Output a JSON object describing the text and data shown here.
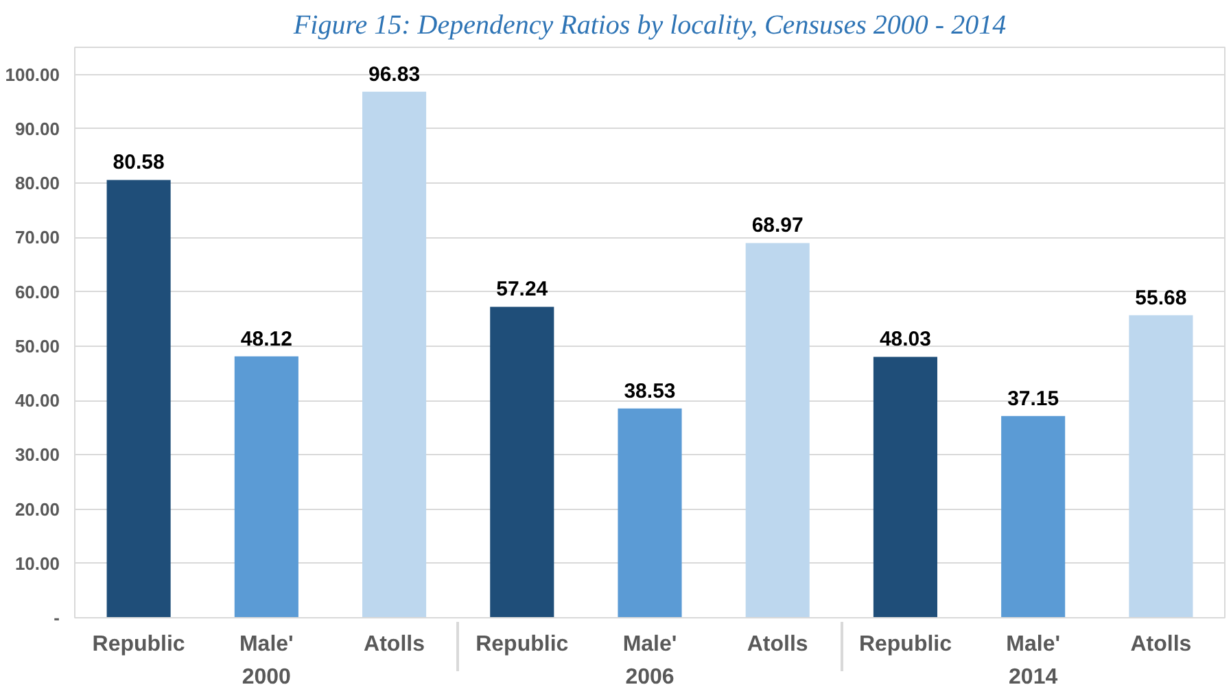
{
  "chart_data": {
    "type": "bar",
    "title": "Figure 15: Dependency Ratios by locality, Censuses 2000 - 2014",
    "categories": [
      "2000",
      "2006",
      "2014"
    ],
    "series": [
      {
        "name": "Republic",
        "color": "#1f4e79",
        "values": [
          80.58,
          57.24,
          48.03
        ]
      },
      {
        "name": "Male'",
        "color": "#5b9bd5",
        "values": [
          48.12,
          38.53,
          37.15
        ]
      },
      {
        "name": "Atolls",
        "color": "#bdd7ee",
        "values": [
          96.83,
          68.97,
          55.68
        ]
      }
    ],
    "ylim": [
      0,
      105
    ],
    "yticks": [
      {
        "value": 0,
        "label": "-"
      },
      {
        "value": 10,
        "label": "10.00"
      },
      {
        "value": 20,
        "label": "20.00"
      },
      {
        "value": 30,
        "label": "30.00"
      },
      {
        "value": 40,
        "label": "40.00"
      },
      {
        "value": 50,
        "label": "50.00"
      },
      {
        "value": 60,
        "label": "60.00"
      },
      {
        "value": 70,
        "label": "70.00"
      },
      {
        "value": 80,
        "label": "80.00"
      },
      {
        "value": 90,
        "label": "90.00"
      },
      {
        "value": 100,
        "label": "100.00"
      }
    ],
    "grid": "y",
    "legend": false,
    "data_labels": true
  }
}
